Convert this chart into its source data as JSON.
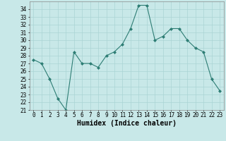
{
  "x": [
    0,
    1,
    2,
    3,
    4,
    5,
    6,
    7,
    8,
    9,
    10,
    11,
    12,
    13,
    14,
    15,
    16,
    17,
    18,
    19,
    20,
    21,
    22,
    23
  ],
  "y": [
    27.5,
    27.0,
    25.0,
    22.5,
    21.0,
    28.5,
    27.0,
    27.0,
    26.5,
    28.0,
    28.5,
    29.5,
    31.5,
    34.5,
    34.5,
    30.0,
    30.5,
    31.5,
    31.5,
    30.0,
    29.0,
    28.5,
    25.0,
    23.5
  ],
  "xlabel": "Humidex (Indice chaleur)",
  "ylim": [
    21,
    35
  ],
  "xlim": [
    -0.5,
    23.5
  ],
  "yticks": [
    21,
    22,
    23,
    24,
    25,
    26,
    27,
    28,
    29,
    30,
    31,
    32,
    33,
    34
  ],
  "xticks": [
    0,
    1,
    2,
    3,
    4,
    5,
    6,
    7,
    8,
    9,
    10,
    11,
    12,
    13,
    14,
    15,
    16,
    17,
    18,
    19,
    20,
    21,
    22,
    23
  ],
  "line_color": "#2d7d74",
  "marker_color": "#2d7d74",
  "bg_color": "#c8e8e8",
  "grid_color": "#aad4d4",
  "tick_fontsize": 5.5,
  "xlabel_fontsize": 7.0
}
